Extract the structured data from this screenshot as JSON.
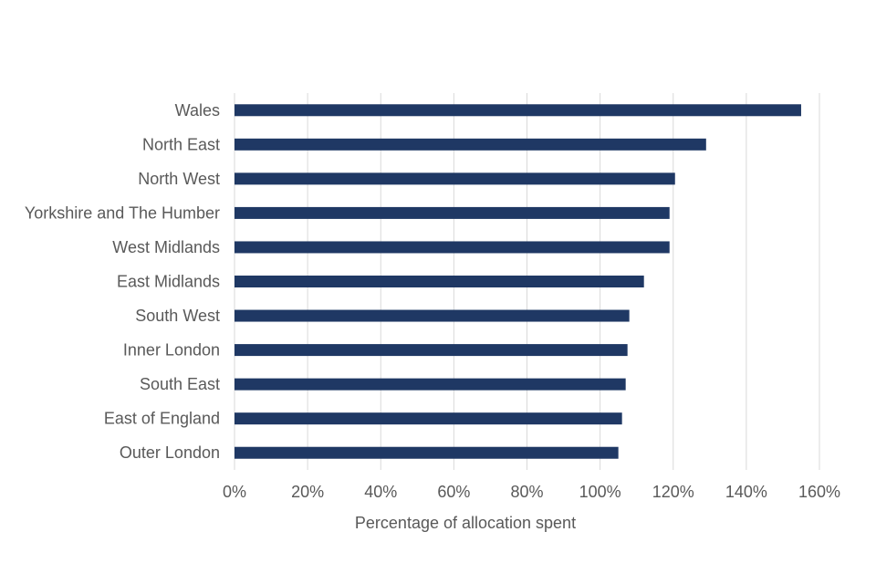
{
  "chart_data": {
    "type": "bar",
    "orientation": "horizontal",
    "categories": [
      "Wales",
      "North East",
      "North West",
      "Yorkshire and The Humber",
      "West Midlands",
      "East Midlands",
      "South West",
      "Inner London",
      "South East",
      "East of England",
      "Outer London"
    ],
    "values": [
      155,
      129,
      120.5,
      119,
      119,
      112,
      108,
      107.5,
      107,
      106,
      105
    ],
    "xlabel": "Percentage of allocation spent",
    "xlim": [
      0,
      160
    ],
    "xticks": [
      "0%",
      "20%",
      "40%",
      "60%",
      "80%",
      "100%",
      "120%",
      "140%",
      "160%"
    ],
    "grid": "vertical",
    "bar_color": "#1f3864"
  }
}
